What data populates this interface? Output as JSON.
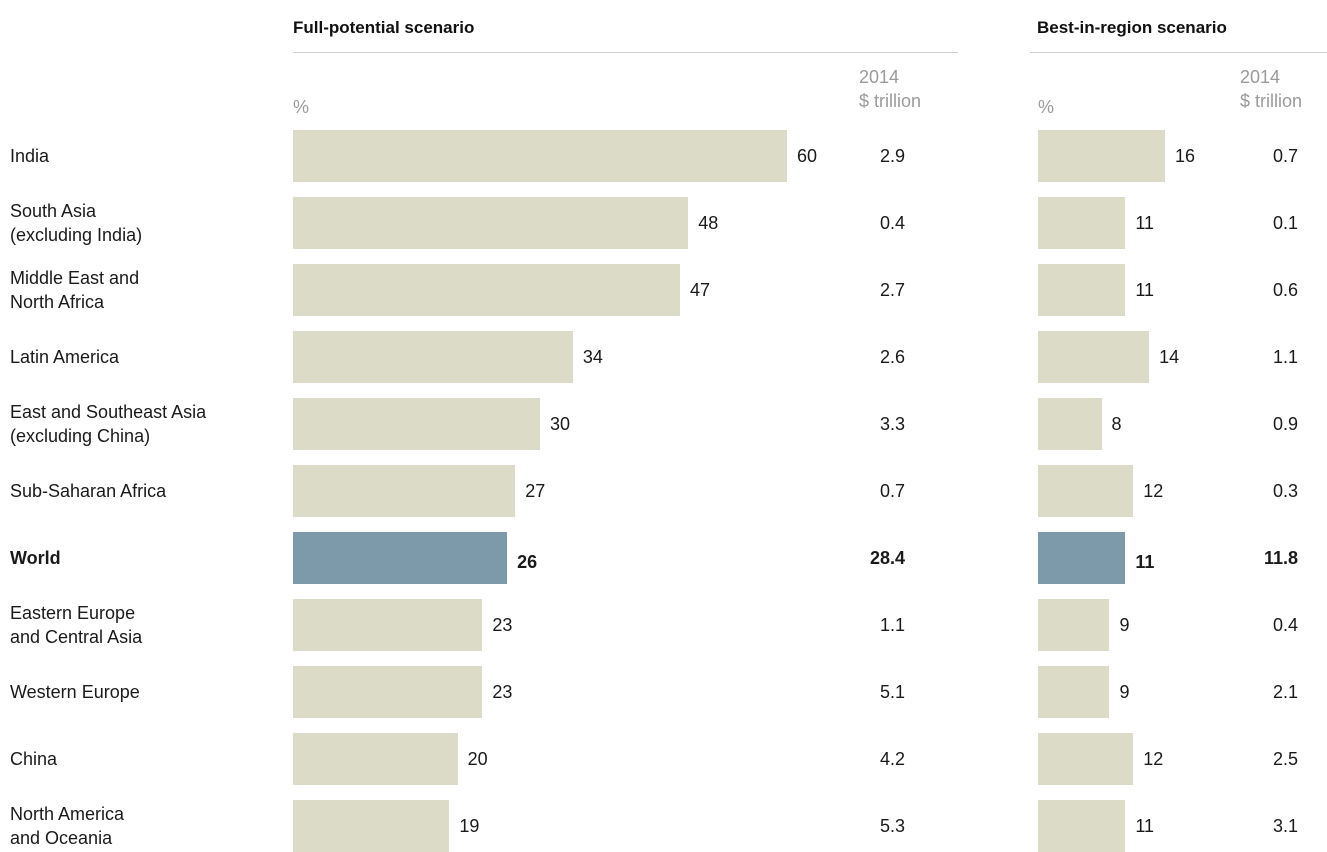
{
  "headers": {
    "panel1_title": "Full-potential scenario",
    "panel2_title": "Best-in-region scenario",
    "pct_label": "%",
    "amount_label_line1": "2014",
    "amount_label_line2": "$ trillion"
  },
  "colors": {
    "bar": "#dcdbc8",
    "highlight_bar": "#7d9aab"
  },
  "chart_data": [
    {
      "type": "bar",
      "orientation": "horizontal",
      "title": "Full-potential scenario",
      "unit": "%",
      "categories": [
        "India",
        "South Asia (excluding India)",
        "Middle East and North Africa",
        "Latin America",
        "East and Southeast Asia (excluding China)",
        "Sub-Saharan Africa",
        "World",
        "Eastern Europe and Central Asia",
        "Western Europe",
        "China",
        "North America and Oceania"
      ],
      "values": [
        60,
        48,
        47,
        34,
        30,
        27,
        26,
        23,
        23,
        20,
        19
      ],
      "amounts_label": "2014 $ trillion",
      "amounts": [
        "2.9",
        "0.4",
        "2.7",
        "2.6",
        "3.3",
        "0.7",
        "28.4",
        "1.1",
        "5.1",
        "4.2",
        "5.3"
      ],
      "highlight": "World"
    },
    {
      "type": "bar",
      "orientation": "horizontal",
      "title": "Best-in-region scenario",
      "unit": "%",
      "categories": [
        "India",
        "South Asia (excluding India)",
        "Middle East and North Africa",
        "Latin America",
        "East and Southeast Asia (excluding China)",
        "Sub-Saharan Africa",
        "World",
        "Eastern Europe and Central Asia",
        "Western Europe",
        "China",
        "North America and Oceania"
      ],
      "values": [
        16,
        11,
        11,
        14,
        8,
        12,
        11,
        9,
        9,
        12,
        11
      ],
      "amounts_label": "2014 $ trillion",
      "amounts": [
        "0.7",
        "0.1",
        "0.6",
        "1.1",
        "0.9",
        "0.3",
        "11.8",
        "0.4",
        "2.1",
        "2.5",
        "3.1"
      ],
      "highlight": "World"
    }
  ],
  "row_labels": [
    [
      "India"
    ],
    [
      "South Asia",
      "(excluding India)"
    ],
    [
      "Middle East and",
      "North Africa"
    ],
    [
      "Latin America"
    ],
    [
      "East and Southeast Asia",
      "(excluding China)"
    ],
    [
      "Sub-Saharan Africa"
    ],
    [
      "World"
    ],
    [
      "Eastern Europe",
      "and Central Asia"
    ],
    [
      "Western Europe"
    ],
    [
      "China"
    ],
    [
      "North America",
      "and Oceania"
    ]
  ]
}
